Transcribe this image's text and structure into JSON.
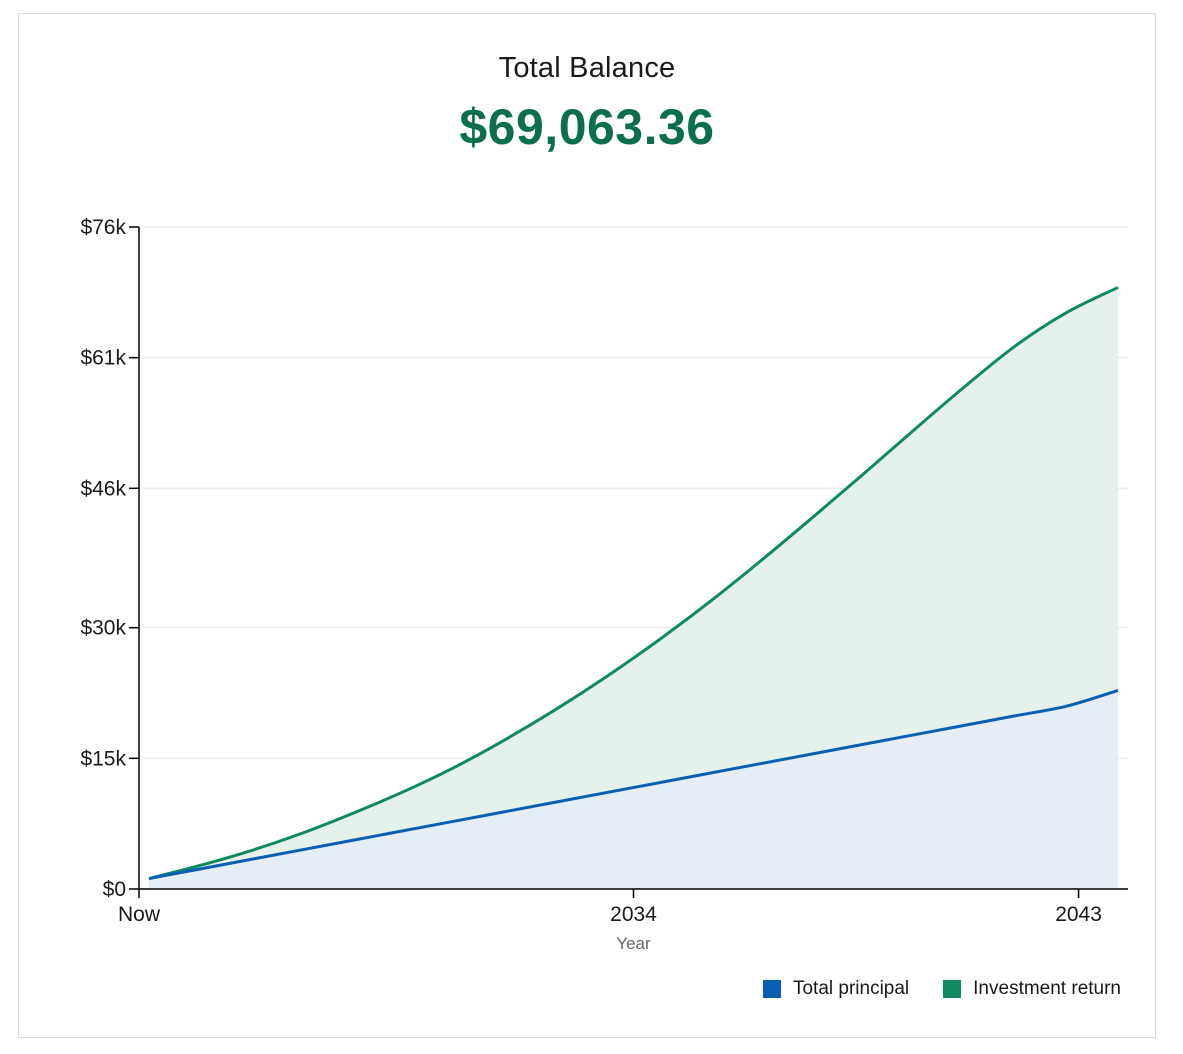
{
  "header": {
    "title": "Total Balance",
    "balance": "$69,063.36"
  },
  "colors": {
    "principal": "#0a5fb4",
    "principal_fill": "#e5edf7",
    "return": "#0f8a5f",
    "return_fill": "#e5f2ec",
    "balance_text": "#0b6e4f"
  },
  "legend": {
    "principal_label": "Total principal",
    "return_label": "Investment return"
  },
  "chart_data": {
    "type": "area",
    "title": "Total Balance",
    "xlabel": "Year",
    "ylabel": "",
    "x": [
      2024,
      2025,
      2026,
      2027,
      2028,
      2029,
      2030,
      2031,
      2032,
      2033,
      2034,
      2035,
      2036,
      2037,
      2038,
      2039,
      2040,
      2041,
      2042,
      2043
    ],
    "x_tick_values": [
      2024,
      2034,
      2043
    ],
    "x_tick_labels": [
      "Now",
      "2034",
      "2043"
    ],
    "xlim": [
      2024,
      2044
    ],
    "ylim": [
      0,
      76000
    ],
    "y_ticks": [
      0,
      15000,
      30000,
      46000,
      61000,
      76000
    ],
    "y_tick_labels": [
      "$0",
      "$15k",
      "$30k",
      "$46k",
      "$61k",
      "$76k"
    ],
    "grid": true,
    "legend_position": "bottom-right",
    "series": [
      {
        "name": "Total principal",
        "values": [
          1200,
          2300,
          3400,
          4500,
          5600,
          6700,
          7800,
          8900,
          10000,
          11100,
          12200,
          13300,
          14400,
          15500,
          16600,
          17700,
          18800,
          19900,
          21000,
          22800
        ]
      },
      {
        "name": "Investment return",
        "values": [
          1200,
          2700,
          4400,
          6400,
          8700,
          11200,
          14000,
          17200,
          20700,
          24500,
          28600,
          33000,
          37700,
          42600,
          47600,
          52700,
          57700,
          62400,
          66200,
          69063
        ]
      }
    ]
  }
}
